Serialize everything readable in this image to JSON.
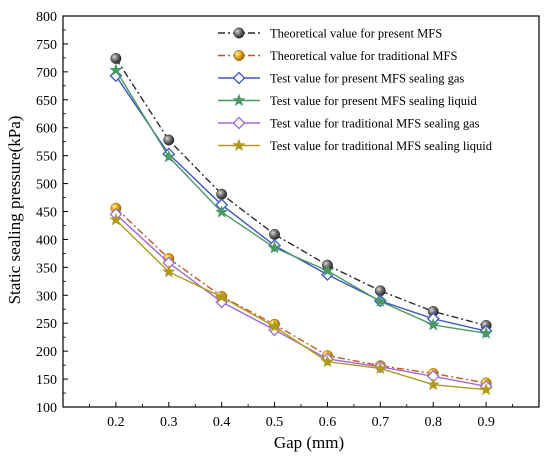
{
  "chart_data": {
    "type": "line",
    "xlabel": "Gap (mm)",
    "ylabel": "Static sealing pressure(kPa)",
    "x": [
      0.2,
      0.3,
      0.4,
      0.5,
      0.6,
      0.7,
      0.8,
      0.9
    ],
    "xlim": [
      0.1,
      1.0
    ],
    "ylim": [
      100,
      800
    ],
    "x_ticks": [
      "0.2",
      "0.3",
      "0.4",
      "0.5",
      "0.6",
      "0.7",
      "0.8",
      "0.9"
    ],
    "y_ticks": [
      "100",
      "150",
      "200",
      "250",
      "300",
      "350",
      "400",
      "450",
      "500",
      "550",
      "600",
      "650",
      "700",
      "750",
      "800"
    ],
    "grid": false,
    "legend_position": "top-right",
    "series": [
      {
        "name": "Theoretical value for present MFS",
        "color": "#2b2b2b",
        "marker": "sphere",
        "line": "dashdot",
        "values": [
          724,
          578,
          481,
          409,
          354,
          308,
          271,
          246
        ]
      },
      {
        "name": "Theoretical value for traditional MFS",
        "color": "#c8541e",
        "marker": "sphere-gold",
        "line": "dashdot",
        "values": [
          456,
          366,
          298,
          248,
          192,
          174,
          160,
          143
        ]
      },
      {
        "name": "Test value for present MFS sealing gas",
        "color": "#3b55c8",
        "marker": "diamond",
        "line": "solid",
        "values": [
          693,
          553,
          462,
          389,
          337,
          290,
          258,
          236
        ]
      },
      {
        "name": "Test value for present MFS sealing liquid",
        "color": "#4b9a63",
        "marker": "star",
        "line": "solid",
        "values": [
          703,
          548,
          449,
          385,
          344,
          289,
          247,
          232
        ]
      },
      {
        "name": "Test value for traditional MFS sealing gas",
        "color": "#a06ad6",
        "marker": "diamond",
        "line": "solid",
        "values": [
          445,
          358,
          288,
          238,
          186,
          172,
          155,
          137
        ]
      },
      {
        "name": "Test value  for traditional MFS sealing liquid",
        "color": "#b09a1c",
        "marker": "star",
        "line": "solid",
        "values": [
          435,
          342,
          297,
          244,
          181,
          169,
          140,
          131
        ]
      }
    ]
  }
}
